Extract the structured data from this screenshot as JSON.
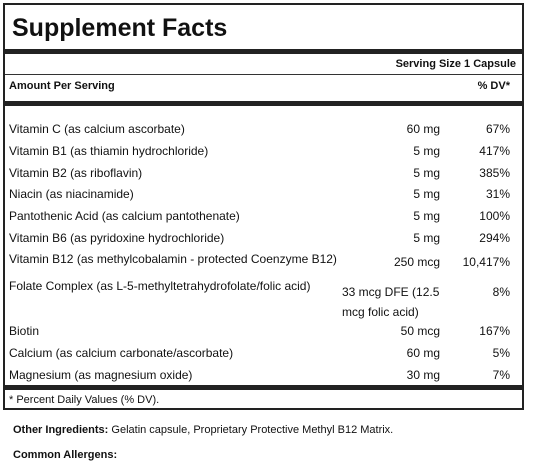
{
  "title": "Supplement Facts",
  "serving_size": "Serving Size 1 Capsule",
  "header": {
    "amount_per_serving": "Amount Per Serving",
    "dv": "% DV*"
  },
  "rows": [
    {
      "name": "Vitamin C (as calcium ascorbate)",
      "amount": "60 mg",
      "dv": "67%"
    },
    {
      "name": "Vitamin B1 (as thiamin hydrochloride)",
      "amount": "5 mg",
      "dv": "417%"
    },
    {
      "name": "Vitamin B2 (as riboflavin)",
      "amount": "5 mg",
      "dv": "385%"
    },
    {
      "name": "Niacin (as niacinamide)",
      "amount": "5 mg",
      "dv": "31%"
    },
    {
      "name": "Pantothenic Acid (as calcium pantothenate)",
      "amount": "5 mg",
      "dv": "100%"
    },
    {
      "name": "Vitamin B6 (as pyridoxine hydrochloride)",
      "amount": "5 mg",
      "dv": "294%"
    },
    {
      "name": "Vitamin B12 (as methylcobalamin - protected Coenzyme B12)",
      "amount": "250 mcg",
      "dv": "10,417%"
    },
    {
      "name": "Folate Complex (as L-5-methyltetrahydrofolate/folic acid)",
      "amount": "33 mcg DFE (12.5 mcg folic acid)",
      "dv": "8%"
    },
    {
      "name": "Biotin",
      "amount": "50 mcg",
      "dv": "167%"
    },
    {
      "name": "Calcium (as calcium carbonate/ascorbate)",
      "amount": "60 mg",
      "dv": "5%"
    },
    {
      "name": "Magnesium (as magnesium oxide)",
      "amount": "30 mg",
      "dv": "7%"
    }
  ],
  "footnote": "* Percent Daily Values (% DV).",
  "other_ingredients": {
    "label": "Other Ingredients:",
    "text": " Gelatin capsule, Proprietary Protective Methyl B12 Matrix."
  },
  "common_allergens": {
    "label": "Common Allergens:"
  }
}
